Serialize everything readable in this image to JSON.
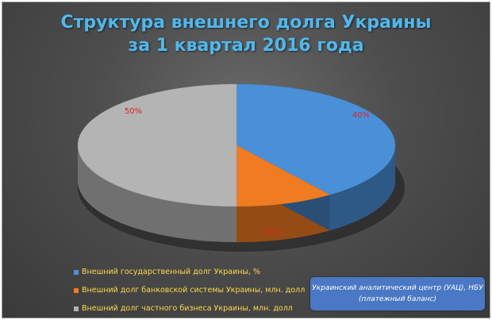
{
  "title_line1": "Структура внешнего долга Украины",
  "title_line2": "за 1 квартал 2016 года",
  "chart_data": {
    "type": "pie",
    "title": "Структура внешнего долга Украины за 1 квартал 2016 года",
    "slices": [
      {
        "name": "Внешний государственный долг Украины, %",
        "value": 40,
        "label": "40%",
        "color": "#4a90d9"
      },
      {
        "name": "Внешний долг банковской системы Украины, млн. долл",
        "value": 10,
        "label": "10%",
        "color": "#f07b21"
      },
      {
        "name": "Внешний долг частного бизнеса Украины, млн. долл",
        "value": 50,
        "label": "50%",
        "color": "#b4b4b4"
      }
    ],
    "data_label_color": "#e02020",
    "legend_position": "bottom-left",
    "style": "3d"
  },
  "source": {
    "line1": "Украинский аналитический  центр (УАЦ), НБУ",
    "line2": "(платежный баланс)"
  }
}
